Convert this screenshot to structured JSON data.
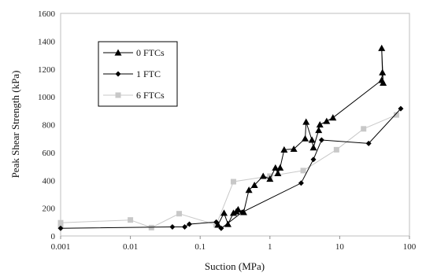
{
  "chart_data": {
    "type": "line",
    "xlabel": "Suction (MPa)",
    "ylabel": "Peak Shear Strength (kPa)",
    "x_scale": "log",
    "xlim": [
      0.001,
      100
    ],
    "ylim": [
      0,
      1600
    ],
    "x_ticks": [
      "0.001",
      "0.01",
      "0.1",
      "1",
      "10",
      "100"
    ],
    "y_ticks": [
      "0",
      "200",
      "400",
      "600",
      "800",
      "1000",
      "1200",
      "1400",
      "1600"
    ],
    "legend_position": "top-left (inside plot)",
    "grid": "none",
    "series": [
      {
        "name": "0 FTCs",
        "color": "#000000",
        "marker": "triangle",
        "points": [
          [
            0.18,
            80
          ],
          [
            0.22,
            165
          ],
          [
            0.25,
            85
          ],
          [
            0.3,
            165
          ],
          [
            0.33,
            175
          ],
          [
            0.35,
            190
          ],
          [
            0.42,
            170
          ],
          [
            0.5,
            330
          ],
          [
            0.6,
            365
          ],
          [
            0.8,
            430
          ],
          [
            1.0,
            410
          ],
          [
            1.2,
            490
          ],
          [
            1.3,
            450
          ],
          [
            1.4,
            490
          ],
          [
            1.6,
            620
          ],
          [
            2.2,
            625
          ],
          [
            3.2,
            700
          ],
          [
            3.3,
            820
          ],
          [
            4.0,
            690
          ],
          [
            4.2,
            635
          ],
          [
            5.0,
            760
          ],
          [
            5.2,
            800
          ],
          [
            6.5,
            825
          ],
          [
            8.0,
            850
          ],
          [
            40,
            1120
          ],
          [
            41,
            1175
          ],
          [
            40,
            1350
          ],
          [
            42,
            1100
          ]
        ]
      },
      {
        "name": "1 FTC",
        "color": "#000000",
        "marker": "diamond",
        "points": [
          [
            0.001,
            55
          ],
          [
            0.04,
            65
          ],
          [
            0.06,
            65
          ],
          [
            0.07,
            85
          ],
          [
            0.17,
            100
          ],
          [
            0.2,
            55
          ],
          [
            0.4,
            170
          ],
          [
            2.8,
            380
          ],
          [
            4.2,
            550
          ],
          [
            5.5,
            690
          ],
          [
            26,
            665
          ],
          [
            75,
            915
          ]
        ]
      },
      {
        "name": "6 FTCs",
        "color": "#c8c8c8",
        "marker": "square",
        "points": [
          [
            0.001,
            75
          ],
          [
            0.001,
            95
          ],
          [
            0.01,
            115
          ],
          [
            0.02,
            60
          ],
          [
            0.05,
            160
          ],
          [
            0.17,
            80
          ],
          [
            0.3,
            390
          ],
          [
            1.0,
            430
          ],
          [
            3.0,
            470
          ],
          [
            9.0,
            620
          ],
          [
            22,
            770
          ],
          [
            65,
            870
          ]
        ]
      }
    ]
  }
}
